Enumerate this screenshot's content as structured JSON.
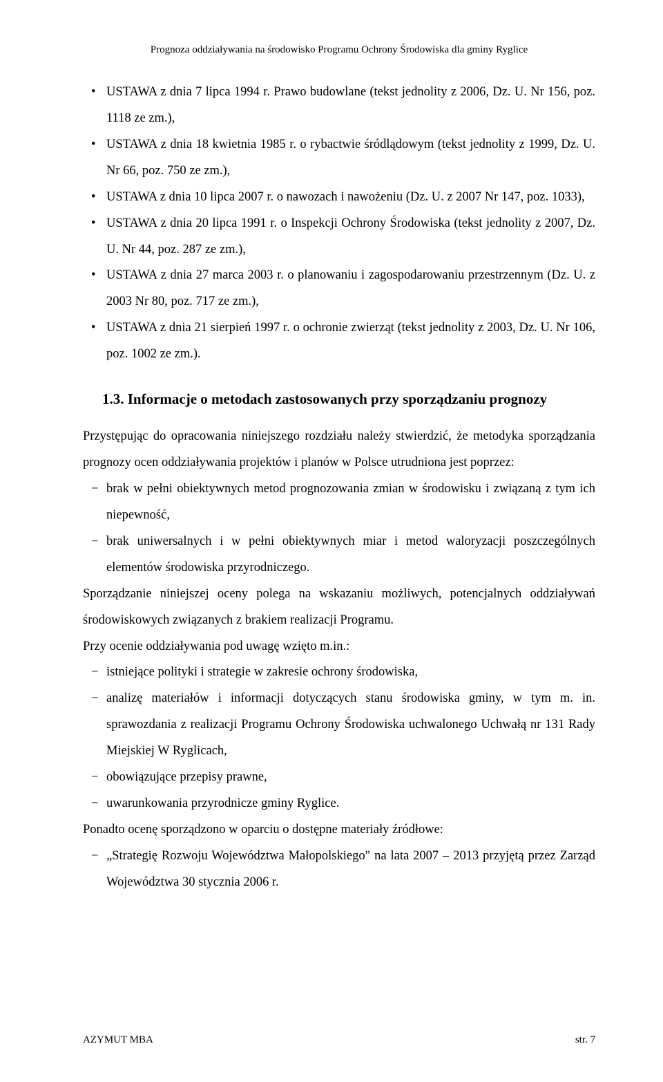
{
  "header": {
    "running_title": "Prognoza oddziaływania na środowisko Programu Ochrony Środowiska dla gminy Ryglice"
  },
  "bullets_top": [
    "USTAWA z dnia 7 lipca 1994 r. Prawo budowlane (tekst jednolity z 2006, Dz. U. Nr 156, poz. 1118 ze zm.),",
    "USTAWA z dnia 18 kwietnia 1985 r. o rybactwie śródlądowym (tekst jednolity z 1999, Dz. U. Nr 66, poz. 750 ze zm.),",
    "USTAWA z dnia 10 lipca 2007 r. o nawozach i nawożeniu (Dz. U. z 2007 Nr 147, poz. 1033),",
    "USTAWA z dnia 20 lipca 1991 r. o Inspekcji Ochrony Środowiska (tekst jednolity z 2007, Dz. U. Nr 44, poz. 287 ze zm.),",
    "USTAWA z dnia 27 marca 2003 r. o planowaniu i zagospodarowaniu przestrzennym (Dz. U. z 2003 Nr 80, poz. 717 ze zm.),",
    "USTAWA z dnia 21 sierpień 1997 r. o ochronie zwierząt (tekst jednolity z 2003, Dz. U. Nr 106, poz. 1002 ze zm.)."
  ],
  "section": {
    "number": "1.3.",
    "title": "Informacje o metodach zastosowanych przy sporządzaniu prognozy"
  },
  "para1": "Przystępując do opracowania niniejszego rozdziału należy stwierdzić, że metodyka sporządzania prognozy ocen oddziaływania projektów i planów w Polsce utrudniona jest poprzez:",
  "dashes1": [
    "brak w pełni obiektywnych metod prognozowania zmian w środowisku i związaną z tym ich niepewność,",
    "brak uniwersalnych i w pełni obiektywnych miar i metod waloryzacji poszczególnych elementów środowiska przyrodniczego."
  ],
  "para2": "Sporządzanie niniejszej oceny polega na wskazaniu możliwych, potencjalnych oddziaływań środowiskowych związanych z brakiem realizacji Programu.",
  "para3": "Przy ocenie oddziaływania pod uwagę wzięto m.in.:",
  "dashes2": [
    "istniejące polityki i strategie w zakresie ochrony środowiska,",
    "analizę materiałów i informacji dotyczących stanu środowiska gminy, w tym m. in. sprawozdania z realizacji Programu Ochrony Środowiska uchwalonego Uchwałą nr 131 Rady Miejskiej W Ryglicach,",
    "obowiązujące przepisy prawne,",
    "uwarunkowania przyrodnicze gminy Ryglice."
  ],
  "para4": "Ponadto ocenę sporządzono w oparciu o dostępne materiały źródłowe:",
  "dashes3": [
    "„Strategię Rozwoju Województwa Małopolskiego\" na lata 2007 – 2013 przyjętą przez Zarząd Województwa 30 stycznia 2006 r."
  ],
  "footer": {
    "left": "AZYMUT MBA",
    "right": "str. 7"
  }
}
